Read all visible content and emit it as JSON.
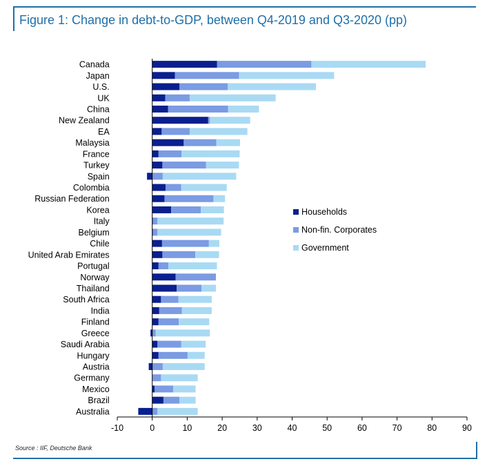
{
  "title": "Figure 1: Change in debt-to-GDP, between Q4-2019 and Q3-2020 (pp)",
  "source": "Source : IIF, Deutsche Bank",
  "chart_data": {
    "type": "bar",
    "orientation": "horizontal",
    "stacked": true,
    "title": "Figure 1: Change in debt-to-GDP, between Q4-2019 and Q3-2020 (pp)",
    "xlim": [
      -10,
      90
    ],
    "xticks": [
      "-10",
      "0",
      "10",
      "20",
      "30",
      "40",
      "50",
      "60",
      "70",
      "80",
      "90"
    ],
    "xtick_values": [
      -10,
      0,
      10,
      20,
      30,
      40,
      50,
      60,
      70,
      80,
      90
    ],
    "grid": false,
    "legend_position": "right",
    "categories": [
      "Canada",
      "Japan",
      "U.S.",
      "UK",
      "China",
      "New Zealand",
      "EA",
      "Malaysia",
      "France",
      "Turkey",
      "Spain",
      "Colombia",
      "Russian Federation",
      "Korea",
      "Italy",
      "Belgium",
      "Chile",
      "United Arab Emirates",
      "Portugal",
      "Norway",
      "Thailand",
      "South Africa",
      "India",
      "Finland",
      "Greece",
      "Saudi Arabia",
      "Hungary",
      "Austria",
      "Germany",
      "Mexico",
      "Brazil",
      "Australia"
    ],
    "series": [
      {
        "name": "Households",
        "color": "#0a1f8f",
        "values": [
          18.5,
          6.5,
          7.8,
          3.7,
          4.5,
          16.0,
          2.7,
          9.0,
          1.8,
          2.9,
          -1.5,
          3.8,
          3.5,
          5.4,
          0.2,
          0.2,
          2.8,
          2.9,
          1.8,
          6.7,
          7.0,
          2.5,
          2.0,
          1.8,
          -0.5,
          1.5,
          1.8,
          -1.0,
          0.0,
          0.7,
          3.2,
          -4.0
        ]
      },
      {
        "name": "Non-fin. Corporates",
        "color": "#7b9be3",
        "values": [
          27.0,
          18.3,
          13.8,
          7.0,
          17.2,
          0.5,
          8.0,
          9.3,
          6.6,
          12.5,
          3.0,
          4.5,
          14.0,
          8.5,
          1.3,
          1.3,
          13.4,
          9.4,
          2.8,
          11.5,
          7.1,
          5.0,
          6.5,
          5.8,
          1.0,
          6.8,
          8.3,
          3.0,
          2.5,
          5.3,
          4.6,
          1.5
        ]
      },
      {
        "name": "Government",
        "color": "#a9daf3",
        "values": [
          32.7,
          27.2,
          25.2,
          24.6,
          8.8,
          11.5,
          16.5,
          6.8,
          16.6,
          9.4,
          21.0,
          13.0,
          3.3,
          6.6,
          18.9,
          18.2,
          3.0,
          6.8,
          13.9,
          0.0,
          4.1,
          9.5,
          8.5,
          8.7,
          15.5,
          7.0,
          4.9,
          12.0,
          10.5,
          6.4,
          4.6,
          11.5
        ]
      }
    ]
  }
}
